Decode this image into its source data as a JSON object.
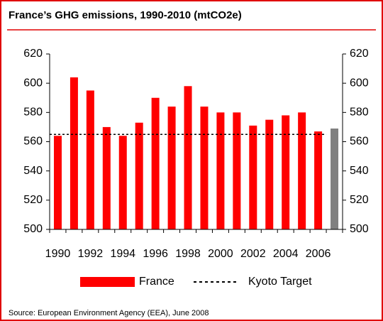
{
  "chart_data": {
    "type": "bar",
    "title": "France’s GHG emissions, 1990-2010 (mtCO2e)",
    "categories": [
      "1990",
      null,
      "1992",
      null,
      "1994",
      null,
      "1996",
      null,
      "1998",
      null,
      "2000",
      null,
      "2002",
      null,
      "2004",
      null,
      "2006",
      null
    ],
    "series": [
      {
        "name": "France",
        "color": "#ff0000",
        "values": [
          564,
          604,
          595,
          570,
          564,
          573,
          590,
          584,
          598,
          584,
          580,
          580,
          571,
          575,
          578,
          580,
          567,
          569
        ],
        "bar_colors": [
          "#ff0000",
          "#ff0000",
          "#ff0000",
          "#ff0000",
          "#ff0000",
          "#ff0000",
          "#ff0000",
          "#ff0000",
          "#ff0000",
          "#ff0000",
          "#ff0000",
          "#ff0000",
          "#ff0000",
          "#ff0000",
          "#ff0000",
          "#ff0000",
          "#ff0000",
          "#808080"
        ]
      }
    ],
    "reference_line": {
      "name": "Kyoto Target",
      "value": 565,
      "color": "#000000"
    },
    "ylim": [
      500,
      620
    ],
    "yticks": [
      500,
      520,
      540,
      560,
      580,
      600,
      620
    ],
    "y2lim": [
      500,
      620
    ],
    "y2ticks": [
      500,
      520,
      540,
      560,
      580,
      600,
      620
    ],
    "source": "Source: European Environment Agency (EEA), June 2008"
  }
}
